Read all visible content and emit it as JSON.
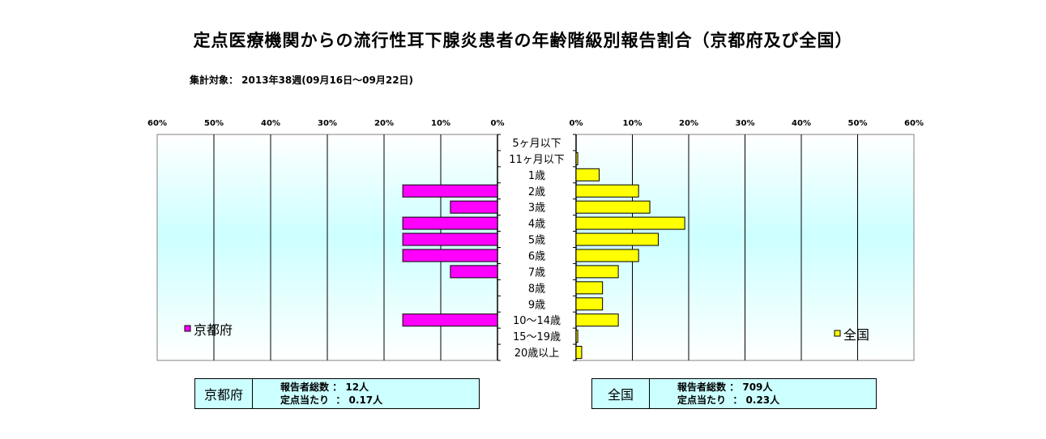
{
  "title": "定点医療機関からの流行性耳下腺炎患者の年齢階級別報告割合（京都府及び全国）",
  "subtitle": "集計対象： 2013年38週(09月16日～09月22日)",
  "colors": {
    "kyoto": "#ff00ff",
    "national": "#ffff00",
    "plot_background": "#ccffff"
  },
  "chart_data": {
    "type": "bar",
    "orientation": "horizontal",
    "categories": [
      "5ヶ月以下",
      "11ヶ月以下",
      "1歳",
      "2歳",
      "3歳",
      "4歳",
      "5歳",
      "6歳",
      "7歳",
      "8歳",
      "9歳",
      "10～14歳",
      "15～19歳",
      "20歳以上"
    ],
    "series": [
      {
        "name": "京都府",
        "values": [
          0,
          0,
          0,
          16.7,
          8.3,
          16.7,
          16.7,
          16.7,
          8.3,
          0,
          0,
          16.7,
          0,
          0
        ]
      },
      {
        "name": "全国",
        "values": [
          0,
          0.3,
          4.1,
          11.1,
          13.1,
          19.3,
          14.6,
          11.1,
          7.5,
          4.7,
          4.7,
          7.5,
          0.3,
          1.0
        ]
      }
    ],
    "left_axis_ticks": [
      "60%",
      "50%",
      "40%",
      "30%",
      "20%",
      "10%",
      "0%"
    ],
    "right_axis_ticks": [
      "0%",
      "10%",
      "20%",
      "30%",
      "40%",
      "50%",
      "60%"
    ],
    "xlim": [
      0,
      60
    ],
    "grid": true,
    "legend": [
      {
        "label": "京都府",
        "position": "bottom-left of left panel"
      },
      {
        "label": "全国",
        "position": "bottom-right of right panel"
      }
    ]
  },
  "info_boxes": {
    "kyoto": {
      "name": "京都府",
      "line1": "報告者総数 ： 12人",
      "line2": "定点当たり  ： 0.17人"
    },
    "national": {
      "name": "全国",
      "line1": "報告者総数 ： 709人",
      "line2": "定点当たり  ： 0.23人"
    }
  }
}
